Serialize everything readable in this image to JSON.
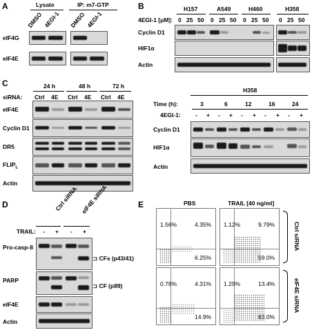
{
  "panels": {
    "A": {
      "letter": "A",
      "header_left": "Lysate",
      "header_right": "IP: m7-GTP",
      "lanes": [
        "DMSO",
        "4EGI-1",
        "DMSO",
        "4EGI-1"
      ],
      "rows": [
        "eIF4G",
        "eIF4E"
      ]
    },
    "B": {
      "letter": "B",
      "cell_lines": [
        "H157",
        "A549",
        "H460",
        "H358"
      ],
      "dose_label": "4EGI-1 [μM]:",
      "doses": [
        "0",
        "25",
        "50",
        "0",
        "25",
        "50",
        "0",
        "25",
        "50",
        "0",
        "25",
        "50"
      ],
      "rows": [
        "Cyclin D1",
        "HIF1α",
        "Actin"
      ]
    },
    "C": {
      "letter": "C",
      "times": [
        "24 h",
        "48 h",
        "72 h"
      ],
      "sirna_label": "siRNA:",
      "sirna_lanes": [
        "Ctrl",
        "4E",
        "Ctrl",
        "4E",
        "Ctrl",
        "4E"
      ],
      "rows": [
        "eIF4E",
        "Cyclin D1",
        "DR5",
        "FLIP",
        "Actin"
      ],
      "flip_sub": "L",
      "right": {
        "cell_line": "H358",
        "time_label": "Time (h):",
        "times": [
          "3",
          "6",
          "12",
          "16",
          "24"
        ],
        "treat_label": "4EGI-1:",
        "treat": [
          "-",
          "+",
          "-",
          "+",
          "-",
          "+",
          "-",
          "+",
          "-",
          "+"
        ],
        "rows": [
          "Cyclin D1",
          "HIF1α",
          "Actin"
        ]
      }
    },
    "D": {
      "letter": "D",
      "groups": [
        "Ctrl siRNA",
        "eIF4E siRNA"
      ],
      "trail_label": "TRAIL:",
      "trail": [
        "-",
        "+",
        "-",
        "+"
      ],
      "rows": [
        "Pro-casp-8",
        "PARP",
        "eIF4E",
        "Actin"
      ],
      "annotations": [
        "CFs (p43/41)",
        "CF (p89)"
      ]
    },
    "E": {
      "letter": "E",
      "columns": [
        "PBS",
        "TRAIL [40 ng/ml]"
      ],
      "rows": [
        "Ctrl siRNA",
        "eIF4E siRNA"
      ],
      "plots": [
        {
          "ul": "1.56%",
          "ur": "4.35%",
          "lr": "6.25%"
        },
        {
          "ul": "1.12%",
          "ur": "9.79%",
          "lr": "59.0%"
        },
        {
          "ul": "0.78%",
          "ur": "4.31%",
          "lr": "14.9%"
        },
        {
          "ul": "1.29%",
          "ur": "13.4%",
          "lr": "63.0%"
        }
      ]
    }
  }
}
